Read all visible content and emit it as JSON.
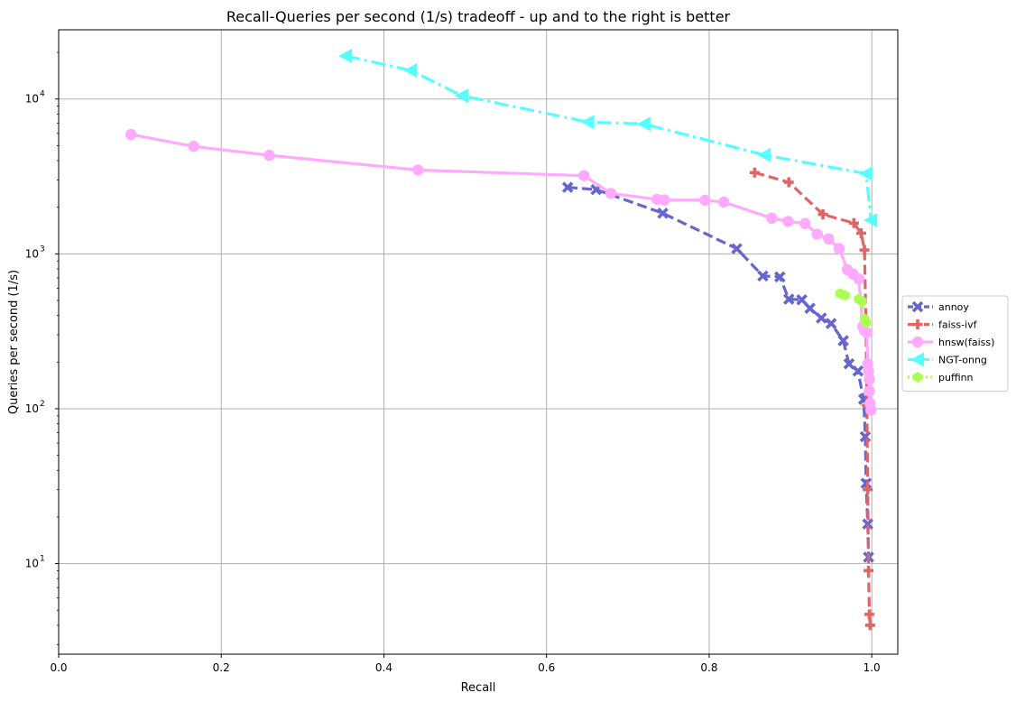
{
  "chart_data": {
    "type": "line",
    "title": "Recall-Queries per second (1/s) tradeoff - up and to the right is better",
    "xlabel": "Recall",
    "ylabel": "Queries per second (1/s)",
    "xlim": [
      0.0,
      1.032
    ],
    "ylim": [
      2.6,
      28000
    ],
    "yscale": "log",
    "xticks": [
      0.0,
      0.2,
      0.4,
      0.6,
      0.8,
      1.0
    ],
    "xtick_labels": [
      "0.0",
      "0.2",
      "0.4",
      "0.6",
      "0.8",
      "1.0"
    ],
    "yticks": [
      10,
      100,
      1000,
      10000
    ],
    "ytick_labels": [
      {
        "base": "10",
        "exp": "1"
      },
      {
        "base": "10",
        "exp": "2"
      },
      {
        "base": "10",
        "exp": "3"
      },
      {
        "base": "10",
        "exp": "4"
      }
    ],
    "grid": true,
    "legend_position": "right, outside plot",
    "series": [
      {
        "name": "annoy",
        "color": "#6666cc",
        "linestyle": "dashed",
        "marker": "x-thick",
        "points": [
          [
            0.626,
            2690
          ],
          [
            0.661,
            2600
          ],
          [
            0.743,
            1830
          ],
          [
            0.834,
            1080
          ],
          [
            0.866,
            720
          ],
          [
            0.887,
            710
          ],
          [
            0.898,
            510
          ],
          [
            0.914,
            505
          ],
          [
            0.924,
            445
          ],
          [
            0.938,
            385
          ],
          [
            0.95,
            355
          ],
          [
            0.965,
            275
          ],
          [
            0.972,
            195
          ],
          [
            0.983,
            175
          ],
          [
            0.99,
            115
          ],
          [
            0.992,
            66
          ],
          [
            0.993,
            33
          ],
          [
            0.995,
            18
          ],
          [
            0.996,
            11
          ]
        ]
      },
      {
        "name": "faiss-ivf",
        "color": "#e06666",
        "linestyle": "dashed",
        "marker": "plus-thick",
        "points": [
          [
            0.856,
            3350
          ],
          [
            0.898,
            2900
          ],
          [
            0.94,
            1800
          ],
          [
            0.978,
            1580
          ],
          [
            0.987,
            1360
          ],
          [
            0.991,
            1060
          ],
          [
            0.993,
            310
          ],
          [
            0.994,
            105
          ],
          [
            0.995,
            30
          ],
          [
            0.996,
            9
          ],
          [
            0.997,
            4.7
          ],
          [
            0.998,
            4.0
          ]
        ]
      },
      {
        "name": "hnsw(faiss)",
        "color": "#ffaaff",
        "linestyle": "solid",
        "marker": "circle",
        "points": [
          [
            0.089,
            5900
          ],
          [
            0.166,
            4950
          ],
          [
            0.259,
            4330
          ],
          [
            0.442,
            3480
          ],
          [
            0.646,
            3200
          ],
          [
            0.679,
            2460
          ],
          [
            0.736,
            2250
          ],
          [
            0.745,
            2230
          ],
          [
            0.795,
            2220
          ],
          [
            0.818,
            2160
          ],
          [
            0.877,
            1700
          ],
          [
            0.897,
            1620
          ],
          [
            0.918,
            1570
          ],
          [
            0.933,
            1340
          ],
          [
            0.947,
            1250
          ],
          [
            0.96,
            1080
          ],
          [
            0.97,
            790
          ],
          [
            0.977,
            740
          ],
          [
            0.984,
            690
          ],
          [
            0.989,
            340
          ],
          [
            0.991,
            320
          ],
          [
            0.994,
            310
          ],
          [
            0.995,
            195
          ],
          [
            0.996,
            175
          ],
          [
            0.997,
            155
          ],
          [
            0.997,
            130
          ],
          [
            0.998,
            108
          ],
          [
            0.999,
            98
          ]
        ]
      },
      {
        "name": "NGT-onng",
        "color": "#55ffff",
        "linestyle": "dashdot",
        "marker": "triangle-left",
        "points": [
          [
            0.353,
            19000
          ],
          [
            0.433,
            15300
          ],
          [
            0.496,
            10500
          ],
          [
            0.651,
            7100
          ],
          [
            0.72,
            6900
          ],
          [
            0.868,
            4350
          ],
          [
            0.993,
            3300
          ],
          [
            0.999,
            1650
          ]
        ]
      },
      {
        "name": "puffinn",
        "color": "#aaff55",
        "linestyle": "dotted",
        "marker": "hexagon",
        "points": [
          [
            0.961,
            555
          ],
          [
            0.967,
            540
          ],
          [
            0.984,
            510
          ],
          [
            0.988,
            495
          ],
          [
            0.991,
            380
          ],
          [
            0.993,
            360
          ]
        ]
      }
    ]
  }
}
